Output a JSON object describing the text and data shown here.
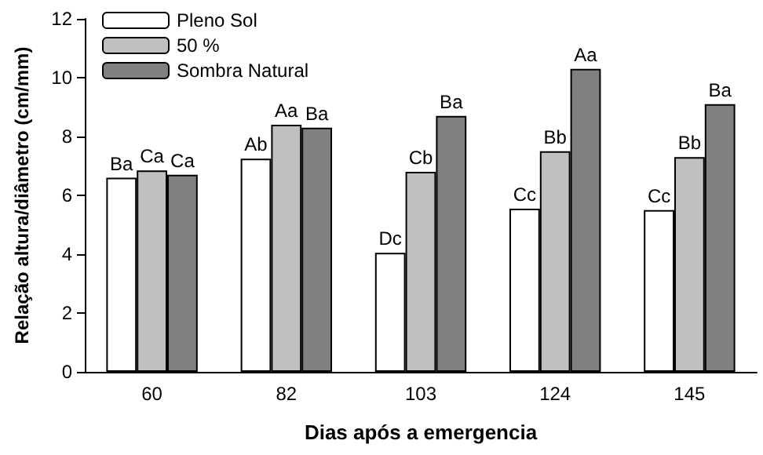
{
  "chart_data": {
    "type": "bar",
    "xlabel": "Dias após a emergencia",
    "ylabel": "Relação altura/diâmetro (cm/mm)",
    "categories": [
      "60",
      "82",
      "103",
      "124",
      "145"
    ],
    "series": [
      {
        "name": "Pleno Sol",
        "color": "#ffffff",
        "values": [
          6.6,
          7.25,
          4.05,
          5.55,
          5.5
        ],
        "value_labels": [
          "Ba",
          "Ab",
          "Dc",
          "Cc",
          "Cc"
        ]
      },
      {
        "name": "50 %",
        "color": "#c0c0c0",
        "values": [
          6.85,
          8.4,
          6.8,
          7.5,
          7.3
        ],
        "value_labels": [
          "Ca",
          "Aa",
          "Cb",
          "Bb",
          "Bb"
        ]
      },
      {
        "name": "Sombra Natural",
        "color": "#808080",
        "values": [
          6.7,
          8.3,
          8.7,
          10.3,
          9.1
        ],
        "value_labels": [
          "Ca",
          "Ba",
          "Ba",
          "Aa",
          "Ba"
        ]
      }
    ],
    "ylim": [
      0,
      12
    ],
    "yticks": [
      0,
      2,
      4,
      6,
      8,
      10,
      12
    ],
    "grid": false,
    "legend": "top left"
  }
}
